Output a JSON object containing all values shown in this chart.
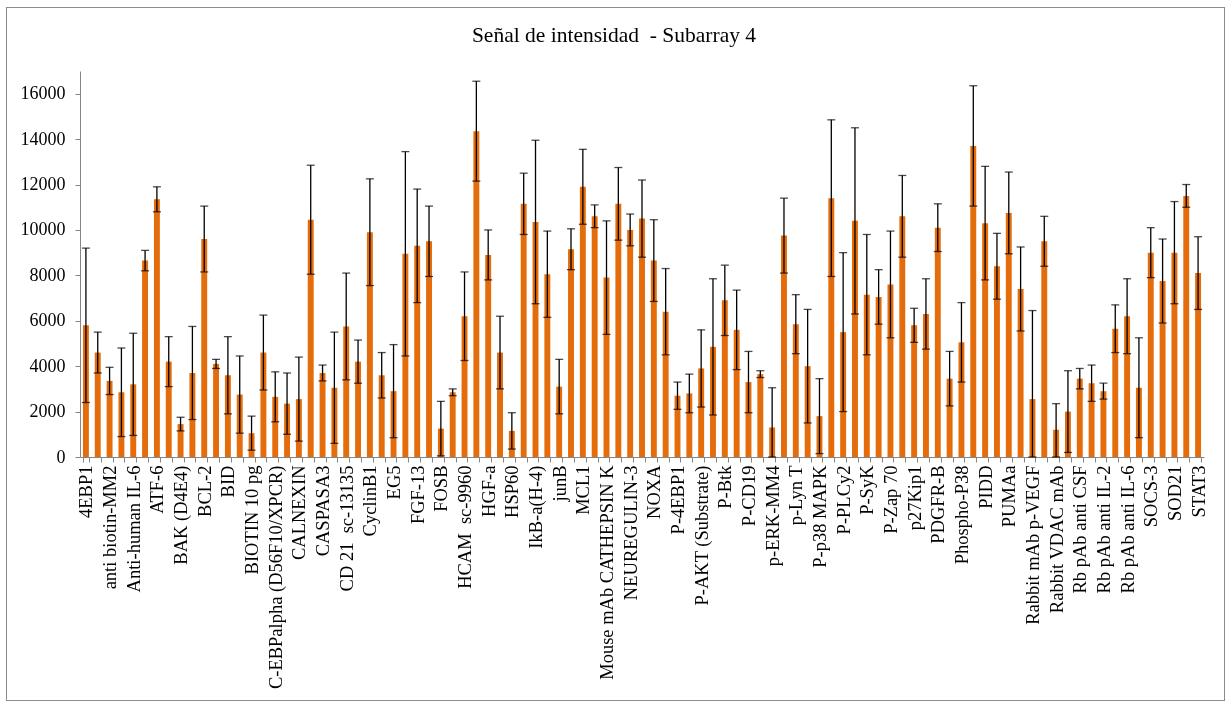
{
  "chart_data": {
    "type": "bar",
    "title": "Señal de intensidad  - Subarray 4",
    "categories": [
      "4EBP1",
      null,
      "anti biotin-MM2",
      null,
      "Anti-human IL-6",
      null,
      "ATF-6",
      null,
      "BAK (D4E4)",
      null,
      "BCL-2",
      null,
      "BID",
      null,
      "BIOTIN 10 pg",
      null,
      "C-EBPalpha (D56F10/XPCR)",
      null,
      "CALNEXIN",
      null,
      "CASPASA3",
      null,
      "CD 21  sc-13135",
      null,
      "CyclinB1",
      null,
      "EG5",
      null,
      "FGF-13",
      null,
      "FOSB",
      null,
      "HCAM  sc-9960",
      null,
      "HGF-a",
      null,
      "HSP60",
      null,
      "IkB-a(H-4)",
      null,
      "junB",
      null,
      "MCL1",
      null,
      "Mouse mAb CATHEPSIN K",
      null,
      "NEUREGULIN-3",
      null,
      "NOXA",
      null,
      "P-4EBP1",
      null,
      "P-AKT (Substrate)",
      null,
      "P-Btk",
      null,
      "P-CD19",
      null,
      "p-ERK-MM4",
      null,
      "p-Lyn T",
      null,
      "P-p38 MAPK",
      null,
      "P-PLCy2",
      null,
      "P-SyK",
      null,
      "P-Zap 70",
      null,
      "p27Kip1",
      null,
      "PDGFR-B",
      null,
      "Phospho-P38",
      null,
      "PIDD",
      null,
      "PUMAa",
      null,
      "Rabbit mAb p-VEGF",
      null,
      "Rabbit VDAC mAb",
      null,
      "Rb pAb anti CSF",
      null,
      "Rb pAb anti IL-2",
      null,
      "Rb pAb anti IL-6",
      null,
      "SOCS-3",
      null,
      "SOD21",
      null,
      "STAT3"
    ],
    "values": [
      5800,
      4600,
      3350,
      2850,
      3200,
      8650,
      11350,
      4200,
      1450,
      3700,
      9600,
      4100,
      3600,
      2750,
      1050,
      4600,
      2650,
      2350,
      2550,
      10450,
      3700,
      3050,
      5750,
      4200,
      9900,
      3600,
      2900,
      8950,
      9300,
      9500,
      1250,
      2850,
      6200,
      14350,
      8900,
      4600,
      1150,
      11150,
      10350,
      8050,
      3100,
      9150,
      11900,
      10600,
      7900,
      11150,
      10000,
      10500,
      8650,
      6400,
      2700,
      2800,
      3900,
      4850,
      6900,
      5600,
      3300,
      3650,
      1300,
      9750,
      5850,
      4000,
      1800,
      11400,
      5500,
      10400,
      7150,
      7050,
      7600,
      10600,
      5800,
      6300,
      10100,
      3450,
      5050,
      13700,
      10300,
      8400,
      10750,
      7400,
      2550,
      9500,
      1200,
      2000,
      3450,
      3250,
      2900,
      5650,
      6200,
      3050,
      9000,
      7750,
      9000,
      11500,
      8100
    ],
    "errors": [
      3400,
      900,
      600,
      1950,
      2250,
      450,
      550,
      1100,
      300,
      2050,
      1450,
      200,
      1700,
      1700,
      750,
      1650,
      1100,
      1350,
      1850,
      2400,
      350,
      2450,
      2350,
      950,
      2350,
      1000,
      2050,
      4500,
      2500,
      1550,
      1200,
      150,
      1950,
      2200,
      1100,
      1600,
      800,
      1350,
      3600,
      1900,
      1200,
      900,
      1650,
      500,
      2500,
      1600,
      700,
      1700,
      1800,
      1900,
      600,
      850,
      1700,
      3000,
      1550,
      1750,
      1350,
      150,
      [
        0,
        3050
      ],
      1650,
      1300,
      2500,
      1650,
      3450,
      3500,
      4100,
      2650,
      1200,
      2350,
      1800,
      750,
      1550,
      1050,
      1200,
      1750,
      2650,
      2500,
      1450,
      1800,
      1850,
      [
        0,
        6450
      ],
      1100,
      [
        0,
        2350
      ],
      1800,
      450,
      800,
      350,
      1050,
      1650,
      2200,
      1100,
      1850,
      2250,
      500,
      1600
    ],
    "color": "#e46c0a",
    "ylim": [
      0,
      17000
    ],
    "yticks": [
      0,
      2000,
      4000,
      6000,
      8000,
      10000,
      12000,
      14000,
      16000
    ]
  }
}
